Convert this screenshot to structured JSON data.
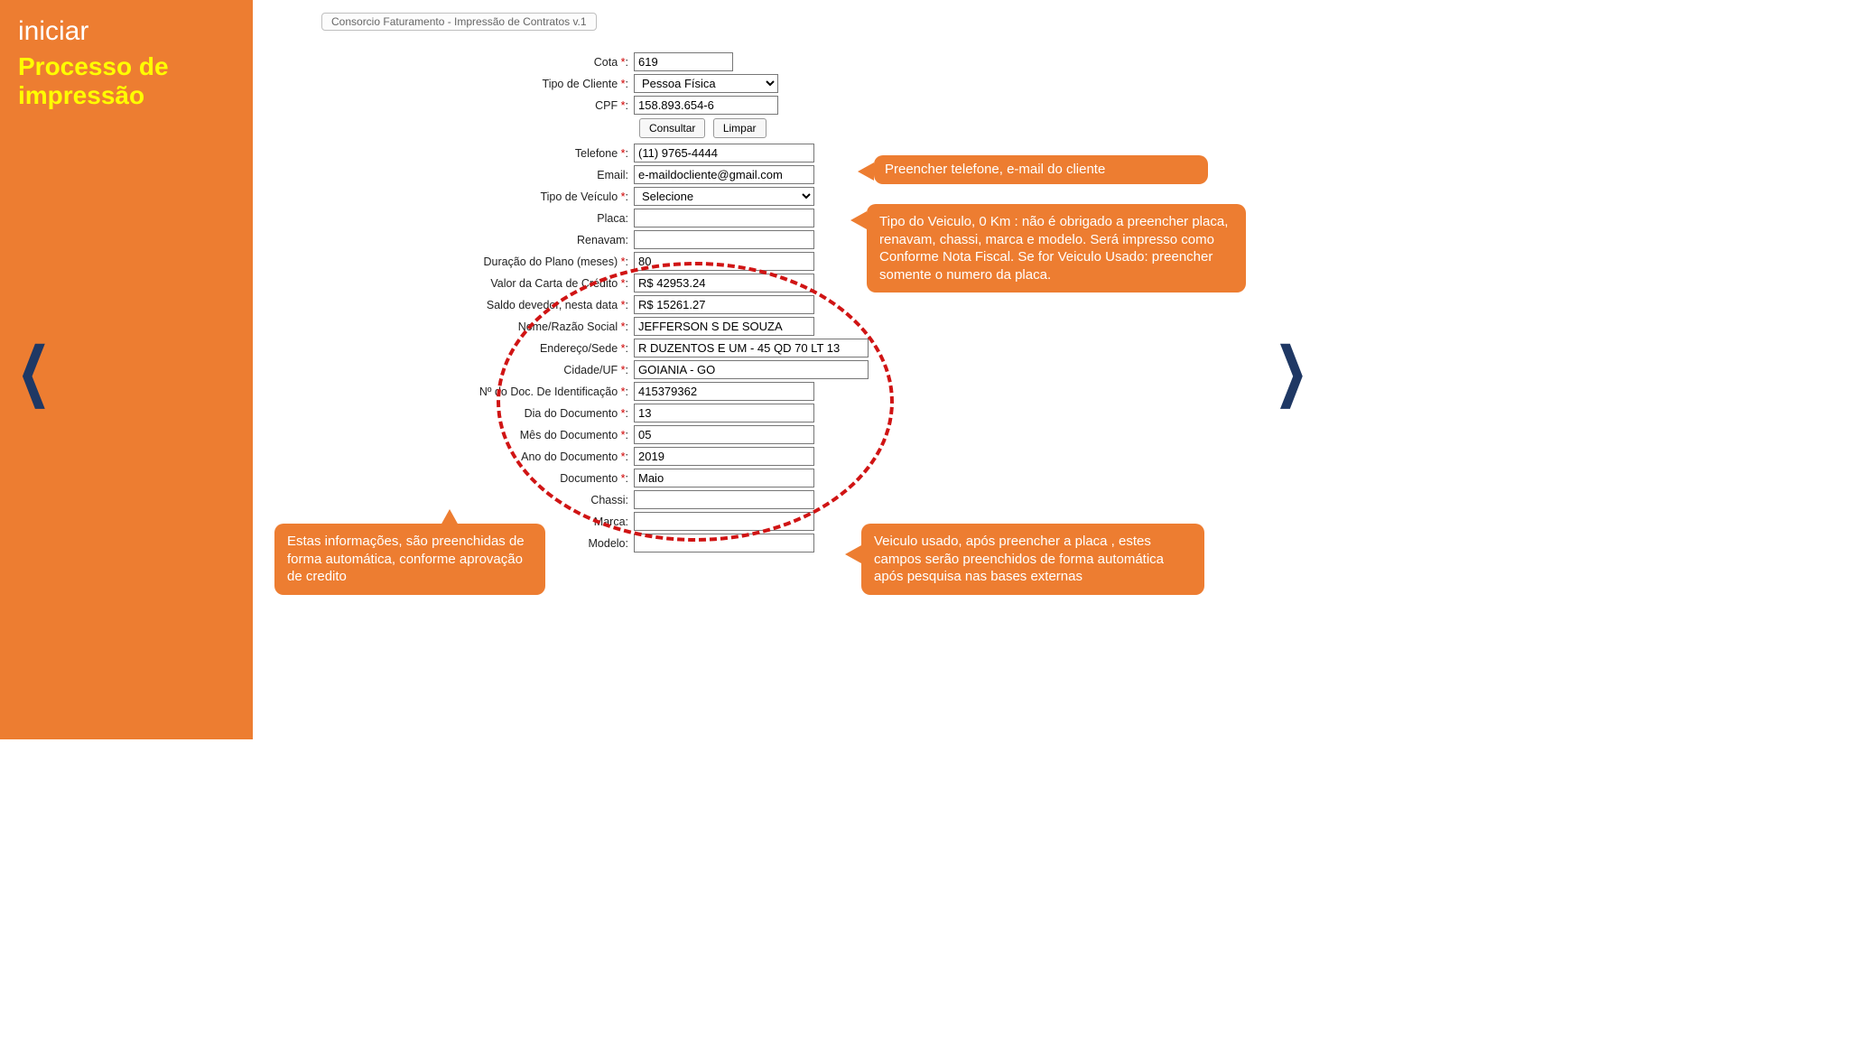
{
  "colors": {
    "orange": "#ed7d31",
    "yellow": "#ffff00",
    "navy": "#1f3864",
    "dash_red": "#d01414",
    "required_star": "#d00000"
  },
  "sidebar": {
    "line1": "iniciar",
    "line2": "Processo de impressão"
  },
  "app_title": "Consorcio Faturamento - Impressão de Contratos v.1",
  "form": {
    "cota": {
      "label": "Cota",
      "value": "619",
      "required": true
    },
    "tipo_cliente": {
      "label": "Tipo de Cliente",
      "value": "Pessoa Física",
      "required": true
    },
    "cpf": {
      "label": "CPF",
      "value": "158.893.654-6",
      "required": true
    },
    "btn_consultar": "Consultar",
    "btn_limpar": "Limpar",
    "telefone": {
      "label": "Telefone",
      "value": "(11) 9765-4444",
      "required": true
    },
    "email": {
      "label": "Email:",
      "value": "e-maildocliente@gmail.com",
      "required": false
    },
    "tipo_veiculo": {
      "label": "Tipo de Veículo",
      "value": "Selecione",
      "required": true
    },
    "placa": {
      "label": "Placa:",
      "value": "",
      "required": false
    },
    "renavam": {
      "label": "Renavam:",
      "value": "",
      "required": false
    },
    "duracao": {
      "label": "Duração do Plano (meses)",
      "value": "80",
      "required": true
    },
    "carta": {
      "label": "Valor da Carta de Crédito",
      "value": "R$ 42953.24",
      "required": true
    },
    "saldo": {
      "label": "Saldo devedor, nesta data",
      "value": "R$ 15261.27",
      "required": true
    },
    "nome": {
      "label": "Nome/Razão Social",
      "value": "JEFFERSON S DE SOUZA",
      "required": true
    },
    "endereco": {
      "label": "Endereço/Sede",
      "value": "R DUZENTOS E UM - 45 QD 70 LT 13",
      "required": true
    },
    "cidade": {
      "label": "Cidade/UF",
      "value": "GOIANIA - GO",
      "required": true
    },
    "docid": {
      "label": "Nº do Doc. De Identificação",
      "value": "415379362",
      "required": true
    },
    "dia": {
      "label": "Dia do Documento",
      "value": "13",
      "required": true
    },
    "mes": {
      "label": "Mês do Documento",
      "value": "05",
      "required": true
    },
    "ano": {
      "label": "Ano do Documento",
      "value": "2019",
      "required": true
    },
    "documento": {
      "label": "Documento",
      "value": "Maio",
      "required": true
    },
    "chassi": {
      "label": "Chassi:",
      "value": "",
      "required": false
    },
    "marca": {
      "label": "Marca:",
      "value": "",
      "required": false
    },
    "modelo": {
      "label": "Modelo:",
      "value": "",
      "required": false
    }
  },
  "callouts": {
    "phone": "Preencher telefone, e-mail do cliente",
    "vehtype": "Tipo do Veiculo,\n0 Km : não é obrigado a preencher placa, renavam, chassi, marca e modelo. Será impresso como Conforme Nota Fiscal.\nSe for Veiculo Usado: preencher somente o numero da placa.",
    "usedveh": "Veiculo usado, após preencher a placa , estes campos serão preenchidos de forma automática após pesquisa nas bases externas",
    "auto": "Estas informações, são preenchidas de forma automática, conforme aprovação de credito"
  }
}
